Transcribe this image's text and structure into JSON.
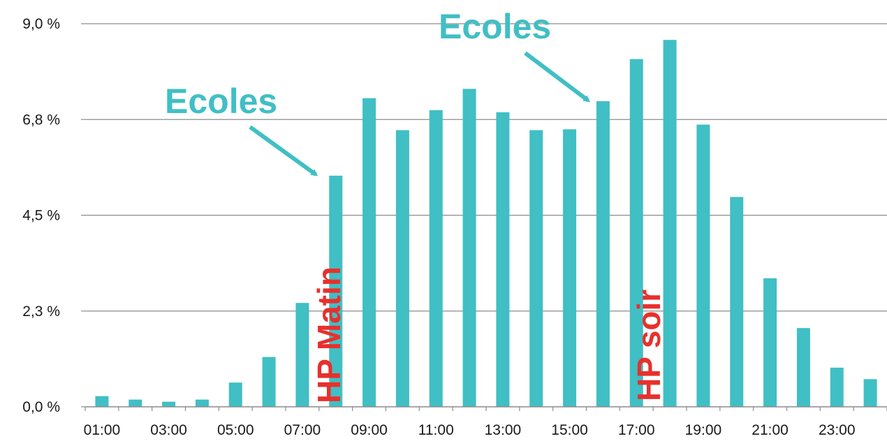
{
  "chart_data": {
    "type": "bar",
    "categories": [
      "01:00",
      "02:00",
      "03:00",
      "04:00",
      "05:00",
      "06:00",
      "07:00",
      "08:00",
      "09:00",
      "10:00",
      "11:00",
      "12:00",
      "13:00",
      "14:00",
      "15:00",
      "16:00",
      "17:00",
      "18:00",
      "19:00",
      "20:00",
      "21:00",
      "22:00",
      "23:00",
      "24:00"
    ],
    "x_tick_labels": [
      "01:00",
      "03:00",
      "05:00",
      "07:00",
      "09:00",
      "11:00",
      "13:00",
      "15:00",
      "17:00",
      "19:00",
      "21:00",
      "23:00"
    ],
    "values": [
      0.25,
      0.17,
      0.12,
      0.17,
      0.57,
      1.17,
      2.44,
      5.43,
      7.25,
      6.5,
      6.97,
      7.47,
      6.92,
      6.5,
      6.52,
      7.18,
      8.17,
      8.62,
      6.63,
      4.93,
      3.02,
      1.85,
      0.92,
      0.65
    ],
    "y_tick_labels": [
      "0,0 %",
      "2,3 %",
      "4,5 %",
      "6,8 %",
      "9,0 %"
    ],
    "y_tick_values": [
      0,
      2.25,
      4.5,
      6.75,
      9.0
    ],
    "ylim": [
      0,
      9.0
    ],
    "title": "",
    "xlabel": "",
    "ylabel": "",
    "grid": true,
    "bar_color": "#40bfc4",
    "annotations": [
      {
        "text": "Ecoles",
        "color": "#40bfc4",
        "points_to": "08:00"
      },
      {
        "text": "Ecoles",
        "color": "#40bfc4",
        "points_to": "16:00"
      },
      {
        "text": "HP Matin",
        "color": "#e8302c",
        "orientation": "vertical",
        "near": "07:00"
      },
      {
        "text": "HP soir",
        "color": "#e8302c",
        "orientation": "vertical",
        "near": "17:00"
      }
    ]
  }
}
